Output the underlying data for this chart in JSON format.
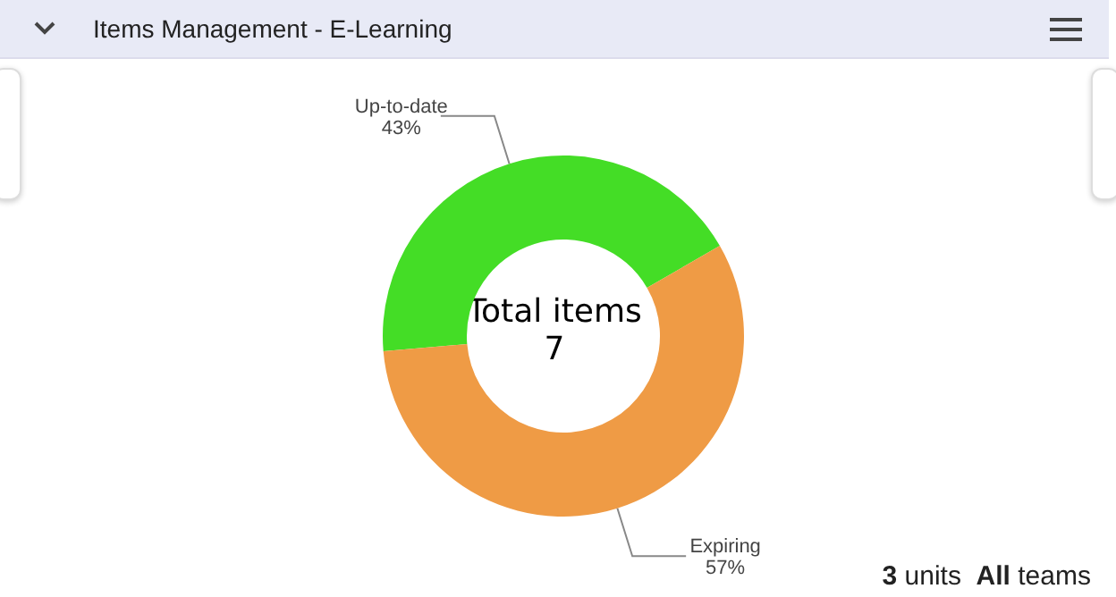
{
  "chart_data": {
    "type": "donut",
    "title": "Items Management - E-Learning",
    "categories": [
      "Up-to-date",
      "Expiring"
    ],
    "values": [
      43,
      57
    ],
    "value_labels": [
      "43%",
      "57%"
    ],
    "colors": [
      "#44dd26",
      "#ef9b45"
    ],
    "annotations": [
      "Total items",
      "7",
      "3 units All teams"
    ]
  }
}
